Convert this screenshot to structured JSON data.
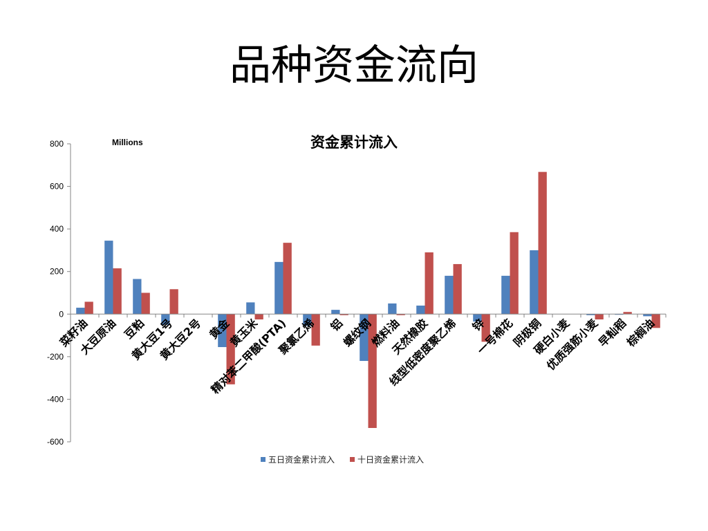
{
  "slide_title": "品种资金流向",
  "colors": {
    "series1": "#4f81bd",
    "series2": "#c0504d",
    "axis": "#868686"
  },
  "chart_data": {
    "type": "bar",
    "title": "资金累计流入",
    "units_label": "Millions",
    "xlabel": "",
    "ylabel": "",
    "ylim": [
      -600,
      800
    ],
    "yticks": [
      800,
      600,
      400,
      200,
      0,
      -200,
      -400,
      -600
    ],
    "grid": false,
    "legend_position": "bottom",
    "categories": [
      "菜籽油",
      "大豆原油",
      "豆粕",
      "黄大豆1号",
      "黄大豆2号",
      "黄金",
      "黄玉米",
      "精对苯二甲酸(PTA)",
      "聚氯乙烯",
      "铝",
      "螺纹钢",
      "燃料油",
      "天然橡胶",
      "线型低密度聚乙烯",
      "锌",
      "一号棉花",
      "阴极铜",
      "硬白小麦",
      "优质强筋小麦",
      "早籼稻",
      "棕榈油"
    ],
    "series": [
      {
        "name": "五日资金累计流入",
        "values": [
          30,
          345,
          165,
          -50,
          0,
          -155,
          55,
          245,
          -55,
          20,
          -220,
          50,
          40,
          180,
          -35,
          180,
          300,
          0,
          -5,
          -3,
          -10
        ]
      },
      {
        "name": "十日资金累计流入",
        "values": [
          58,
          215,
          100,
          117,
          0,
          -330,
          -25,
          335,
          -148,
          -5,
          -535,
          -5,
          290,
          235,
          -130,
          385,
          668,
          0,
          -25,
          10,
          -65
        ]
      }
    ]
  }
}
